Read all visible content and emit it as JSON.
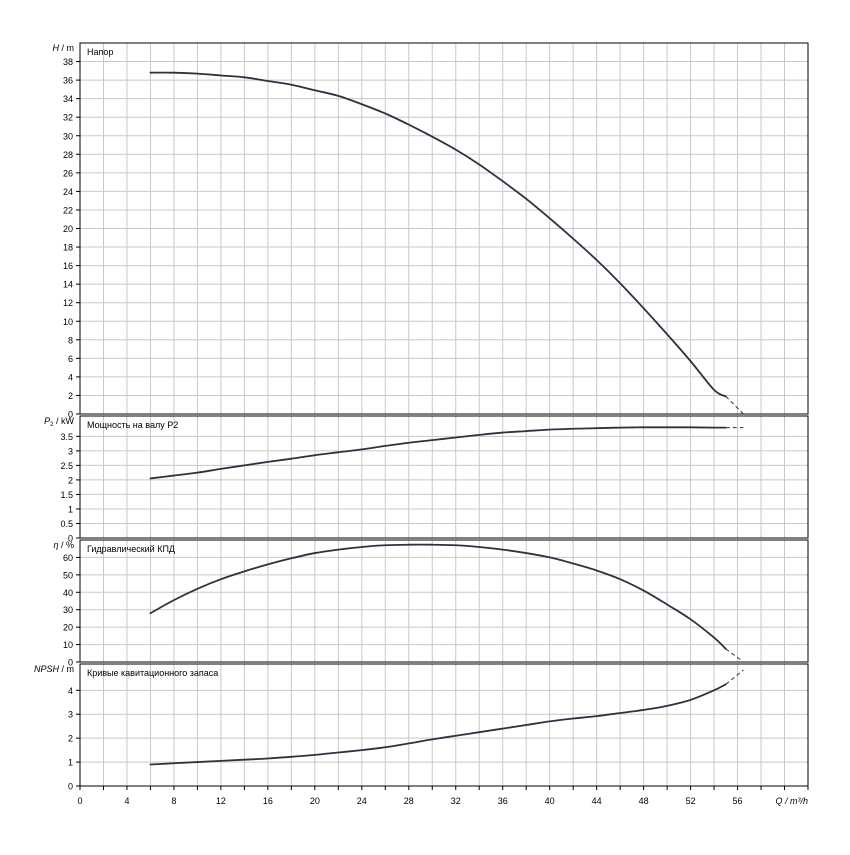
{
  "chart_data": [
    {
      "type": "line",
      "id": "head",
      "title": "Напор",
      "ylabel_main": "H",
      "ylabel_unit": " / m",
      "ylim": [
        0,
        40
      ],
      "yticks": [
        0,
        2,
        4,
        6,
        8,
        10,
        12,
        14,
        16,
        18,
        20,
        22,
        24,
        26,
        28,
        30,
        32,
        34,
        36,
        38
      ],
      "ytick_labels": [
        "0",
        "2",
        "4",
        "6",
        "8",
        "10",
        "12",
        "14",
        "16",
        "18",
        "20",
        "22",
        "24",
        "26",
        "28",
        "30",
        "32",
        "34",
        "36",
        "38"
      ],
      "grid": true,
      "series": [
        {
          "x": [
            6,
            8,
            10,
            12,
            14,
            16,
            18,
            20,
            22,
            24,
            26,
            28,
            30,
            32,
            34,
            36,
            38,
            40,
            42,
            44,
            46,
            48,
            50,
            52,
            54,
            55
          ],
          "y": [
            36.8,
            36.8,
            36.7,
            36.5,
            36.3,
            35.9,
            35.5,
            34.9,
            34.3,
            33.4,
            32.4,
            31.2,
            29.9,
            28.5,
            26.9,
            25.1,
            23.2,
            21.1,
            18.9,
            16.6,
            14.1,
            11.4,
            8.6,
            5.7,
            2.6,
            1.9
          ]
        }
      ],
      "extrapolation": {
        "x": [
          55,
          56.5
        ],
        "y": [
          1.9,
          0
        ]
      }
    },
    {
      "type": "line",
      "id": "power",
      "title": "Мощность на валу P2",
      "ylabel_main": "P",
      "ylabel_sub": "2",
      "ylabel_unit": " / kW",
      "ylim": [
        0,
        4.2
      ],
      "yticks": [
        0,
        0.5,
        1,
        1.5,
        2,
        2.5,
        3,
        3.5
      ],
      "ytick_labels": [
        "0",
        "0.5",
        "1",
        "1.5",
        "2",
        "2.5",
        "3",
        "3.5"
      ],
      "grid": true,
      "series": [
        {
          "x": [
            6,
            8,
            10,
            12,
            14,
            16,
            18,
            20,
            22,
            24,
            26,
            28,
            30,
            32,
            34,
            36,
            38,
            40,
            42,
            44,
            46,
            48,
            50,
            52,
            54,
            55
          ],
          "y": [
            2.05,
            2.15,
            2.25,
            2.38,
            2.5,
            2.62,
            2.73,
            2.85,
            2.95,
            3.05,
            3.17,
            3.28,
            3.37,
            3.46,
            3.55,
            3.63,
            3.68,
            3.73,
            3.76,
            3.78,
            3.8,
            3.81,
            3.81,
            3.81,
            3.8,
            3.8
          ]
        }
      ],
      "extrapolation": {
        "x": [
          55,
          56.5
        ],
        "y": [
          3.8,
          3.8
        ]
      }
    },
    {
      "type": "line",
      "id": "efficiency",
      "title": "Гидравлический КПД",
      "ylabel_main": "η",
      "ylabel_unit": " / %",
      "ylim": [
        0,
        70
      ],
      "yticks": [
        0,
        10,
        20,
        30,
        40,
        50,
        60
      ],
      "ytick_labels": [
        "0",
        "10",
        "20",
        "30",
        "40",
        "50",
        "60"
      ],
      "grid": true,
      "series": [
        {
          "x": [
            6,
            8,
            10,
            12,
            14,
            16,
            18,
            20,
            22,
            24,
            26,
            28,
            30,
            32,
            34,
            36,
            38,
            40,
            42,
            44,
            46,
            48,
            50,
            52,
            54,
            55
          ],
          "y": [
            28,
            35.5,
            42,
            47.5,
            52,
            56,
            59.5,
            62.5,
            64.5,
            66,
            67,
            67.3,
            67.3,
            67,
            66,
            64.5,
            62.5,
            60,
            56.5,
            52.5,
            47.5,
            41,
            33,
            24.5,
            14,
            7.5
          ]
        }
      ],
      "extrapolation": {
        "x": [
          55,
          56.5
        ],
        "y": [
          7.5,
          0
        ]
      }
    },
    {
      "type": "line",
      "id": "npsh",
      "title": "Кривые кавитационного запаса",
      "ylabel_main": "NPSH",
      "ylabel_unit": " / m",
      "ylim": [
        0,
        5.1
      ],
      "yticks": [
        0,
        1,
        2,
        3,
        4
      ],
      "ytick_labels": [
        "0",
        "1",
        "2",
        "3",
        "4"
      ],
      "grid": true,
      "series": [
        {
          "x": [
            6,
            8,
            10,
            12,
            14,
            16,
            18,
            20,
            22,
            24,
            26,
            28,
            30,
            32,
            34,
            36,
            38,
            40,
            42,
            44,
            46,
            48,
            50,
            52,
            54,
            55
          ],
          "y": [
            0.9,
            0.95,
            1.0,
            1.05,
            1.1,
            1.15,
            1.22,
            1.3,
            1.4,
            1.5,
            1.62,
            1.78,
            1.95,
            2.1,
            2.25,
            2.4,
            2.55,
            2.7,
            2.82,
            2.92,
            3.05,
            3.18,
            3.35,
            3.6,
            4.0,
            4.25
          ]
        }
      ],
      "extrapolation": {
        "x": [
          55,
          56.5
        ],
        "y": [
          4.25,
          4.85
        ]
      }
    }
  ],
  "x_axis": {
    "label": "Q / m³/h",
    "xlim": [
      0,
      62
    ],
    "ticks": [
      0,
      4,
      8,
      12,
      16,
      20,
      24,
      28,
      32,
      36,
      40,
      44,
      48,
      52,
      56
    ],
    "tick_labels": [
      "0",
      "4",
      "8",
      "12",
      "16",
      "20",
      "24",
      "28",
      "32",
      "36",
      "40",
      "44",
      "48",
      "52",
      "56"
    ],
    "minor_step": 2
  },
  "colors": {
    "curve": "#2b3340",
    "grid": "#c8c8c8",
    "axis": "#000000",
    "background": "#ffffff"
  }
}
